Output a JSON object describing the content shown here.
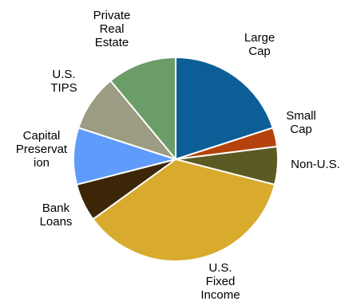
{
  "chart_data": {
    "type": "pie",
    "start_angle_deg": 0,
    "direction": "clockwise",
    "legend": "none",
    "slices": [
      {
        "label": "Large Cap",
        "label_lines": [
          "Large",
          "Cap"
        ],
        "value": 20.0,
        "color": "#0b5f96"
      },
      {
        "label": "Small Cap",
        "label_lines": [
          "Small",
          "Cap"
        ],
        "value": 3.0,
        "color": "#b5420c"
      },
      {
        "label": "Non-U.S.",
        "label_lines": [
          "Non-U.S."
        ],
        "value": 6.0,
        "color": "#5a5a22"
      },
      {
        "label": "U.S. Fixed Income",
        "label_lines": [
          "U.S.",
          "Fixed",
          "Income"
        ],
        "value": 36.0,
        "color": "#d8ab2f"
      },
      {
        "label": "Bank Loans",
        "label_lines": [
          "Bank",
          "Loans"
        ],
        "value": 6.0,
        "color": "#3d2608"
      },
      {
        "label": "Capital Preservation",
        "label_lines": [
          "Capital",
          "Preservat",
          "ion"
        ],
        "value": 9.0,
        "color": "#5f9bfa"
      },
      {
        "label": "U.S. TIPS",
        "label_lines": [
          "U.S.",
          "TIPS"
        ],
        "value": 9.0,
        "color": "#9c9c82"
      },
      {
        "label": "Private Real Estate",
        "label_lines": [
          "Private",
          "Real",
          "Estate"
        ],
        "value": 11.0,
        "color": "#6a9d67"
      }
    ]
  }
}
